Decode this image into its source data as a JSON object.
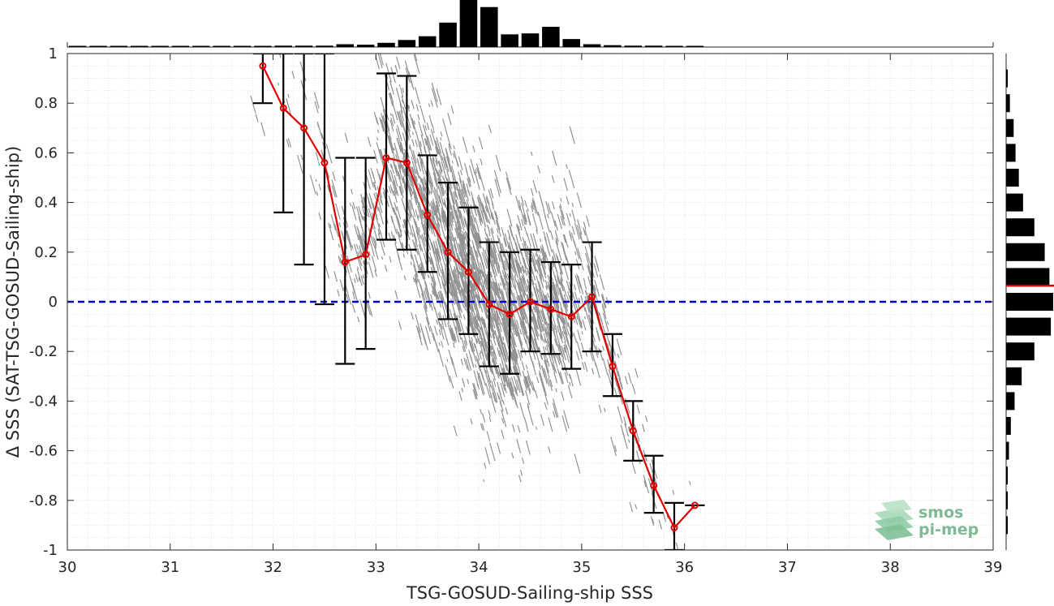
{
  "chart_data": {
    "type": "scatter",
    "xlabel": "TSG-GOSUD-Sailing-ship SSS",
    "ylabel": "Δ SSS (SAT-TSG-GOSUD-Sailing-ship)",
    "xlim": [
      30,
      39
    ],
    "ylim": [
      -1,
      1
    ],
    "x_ticks": [
      "30",
      "31",
      "32",
      "33",
      "34",
      "35",
      "36",
      "37",
      "38",
      "39"
    ],
    "y_ticks": [
      "-1",
      "-0.8",
      "-0.6",
      "-0.4",
      "-0.2",
      "0",
      "0.2",
      "0.4",
      "0.6",
      "0.8",
      "1"
    ],
    "grid": "minor dotted",
    "zero_line": {
      "y": 0,
      "color": "#0000cc",
      "style": "dashed"
    },
    "binned_mean": {
      "color": "#e00000",
      "x": [
        31.9,
        32.1,
        32.3,
        32.5,
        32.7,
        32.9,
        33.1,
        33.3,
        33.5,
        33.7,
        33.9,
        34.1,
        34.3,
        34.5,
        34.7,
        34.9,
        35.1,
        35.3,
        35.5,
        35.7,
        35.9,
        36.1
      ],
      "y": [
        0.95,
        0.78,
        0.7,
        0.56,
        0.16,
        0.19,
        0.58,
        0.56,
        0.35,
        0.2,
        0.12,
        -0.01,
        -0.05,
        0.0,
        -0.03,
        -0.06,
        0.02,
        -0.26,
        -0.52,
        -0.74,
        -0.91,
        -0.82
      ],
      "lower": [
        0.8,
        0.36,
        0.15,
        -0.01,
        -0.25,
        -0.19,
        0.25,
        0.21,
        0.12,
        -0.07,
        -0.13,
        -0.26,
        -0.29,
        -0.2,
        -0.21,
        -0.27,
        -0.2,
        -0.38,
        -0.64,
        -0.85,
        -1.0,
        -0.82
      ],
      "upper": [
        1.0,
        1.0,
        1.0,
        1.0,
        0.58,
        0.58,
        0.92,
        0.91,
        0.59,
        0.48,
        0.38,
        0.24,
        0.2,
        0.21,
        0.16,
        0.15,
        0.24,
        -0.13,
        -0.4,
        -0.62,
        -0.81,
        -0.82
      ]
    },
    "scatter_color": "#808080",
    "x_histogram": {
      "bin_centers": [
        30.1,
        30.3,
        30.5,
        30.7,
        30.9,
        31.1,
        31.3,
        31.5,
        31.7,
        31.9,
        32.1,
        32.3,
        32.5,
        32.7,
        32.9,
        33.1,
        33.3,
        33.5,
        33.7,
        33.9,
        34.1,
        34.3,
        34.5,
        34.7,
        34.9,
        35.1,
        35.3,
        35.5,
        35.7,
        35.9,
        36.1
      ],
      "counts": [
        0.01,
        0.01,
        0.02,
        0.02,
        0.01,
        0.01,
        0.01,
        0.02,
        0.02,
        0.02,
        0.03,
        0.03,
        0.03,
        0.06,
        0.05,
        0.09,
        0.15,
        0.23,
        0.52,
        1.0,
        0.85,
        0.27,
        0.29,
        0.43,
        0.17,
        0.06,
        0.04,
        0.03,
        0.03,
        0.02,
        0.02
      ]
    },
    "y_histogram": {
      "bin_centers": [
        0.9,
        0.8,
        0.7,
        0.6,
        0.5,
        0.4,
        0.3,
        0.2,
        0.1,
        0.0,
        -0.1,
        -0.2,
        -0.3,
        -0.4,
        -0.5,
        -0.6,
        -0.7,
        -0.8,
        -0.9
      ],
      "counts": [
        0.03,
        0.08,
        0.16,
        0.2,
        0.27,
        0.36,
        0.6,
        0.82,
        0.92,
        1.0,
        0.95,
        0.6,
        0.33,
        0.18,
        0.1,
        0.06,
        0.03,
        0.03,
        0.03
      ],
      "median_line": 0.065,
      "median_color": "#e00000"
    },
    "logo": {
      "line1": "smos",
      "line2": "pi-mep"
    }
  }
}
